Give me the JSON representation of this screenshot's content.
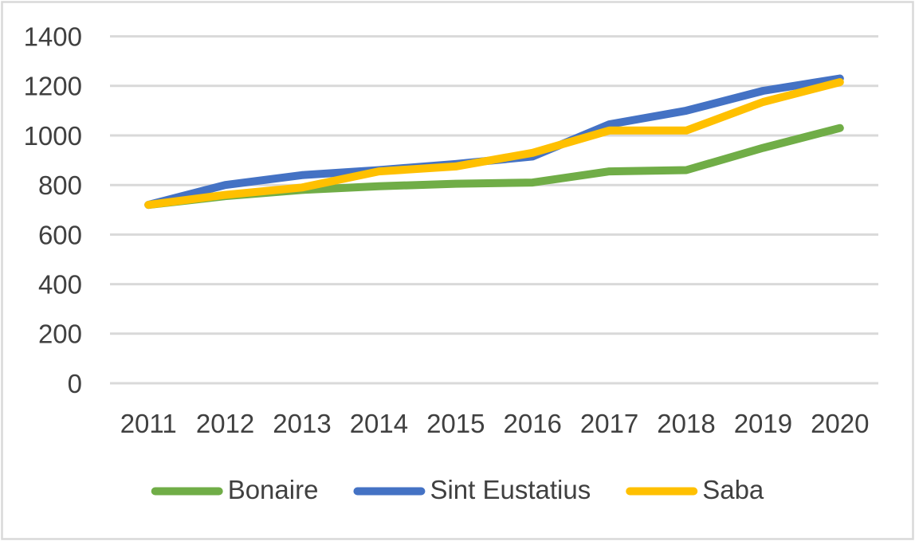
{
  "chart_data": {
    "type": "line",
    "title": "",
    "categories": [
      "2011",
      "2012",
      "2013",
      "2014",
      "2015",
      "2016",
      "2017",
      "2018",
      "2019",
      "2020"
    ],
    "series": [
      {
        "name": "Bonaire",
        "color": "#70AD47",
        "values": [
          720,
          755,
          780,
          795,
          805,
          810,
          855,
          860,
          950,
          1030
        ]
      },
      {
        "name": "Sint Eustatius",
        "color": "#4472C4",
        "values": [
          720,
          800,
          840,
          860,
          885,
          915,
          1045,
          1100,
          1180,
          1230
        ]
      },
      {
        "name": "Saba",
        "color": "#FFC000",
        "values": [
          720,
          760,
          790,
          855,
          875,
          930,
          1020,
          1020,
          1135,
          1215
        ]
      }
    ],
    "xlabel": "",
    "ylabel": "",
    "ylim": [
      0,
      1400
    ],
    "yticks": [
      0,
      200,
      400,
      600,
      800,
      1000,
      1200,
      1400
    ],
    "grid": "horizontal",
    "legend_position": "bottom"
  },
  "style": {
    "background_color": "#FFFFFF",
    "border_color": "#D9D9D9",
    "gridline_color": "#D9D9D9",
    "axis_line_color": "#D9D9D9",
    "tick_text_color": "#404040",
    "legend_text_color": "#404040",
    "line_width": 10,
    "gridline_width": 3,
    "font_size": 33
  }
}
